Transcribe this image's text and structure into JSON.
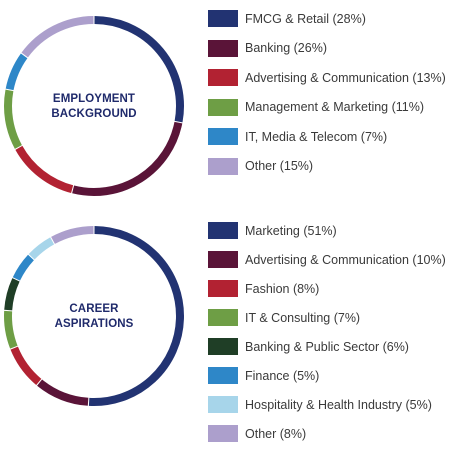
{
  "chart_data": [
    {
      "type": "pie",
      "donut": true,
      "title": "EMPLOYMENT BACKGROUND",
      "title_lines": [
        "EMPLOYMENT",
        "BACKGROUND"
      ],
      "slices": [
        {
          "label": "FMCG & Retail (28%)",
          "value": 28,
          "color": "#223372"
        },
        {
          "label": "Banking (26%)",
          "value": 26,
          "color": "#5a1438"
        },
        {
          "label": "Advertising & Communication (13%)",
          "value": 13,
          "color": "#b22232"
        },
        {
          "label": "Management & Marketing (11%)",
          "value": 11,
          "color": "#6e9e45"
        },
        {
          "label": "IT, Media & Telecom (7%)",
          "value": 7,
          "color": "#2e87c8"
        },
        {
          "label": "Other (15%)",
          "value": 15,
          "color": "#ac9fcc"
        }
      ]
    },
    {
      "type": "pie",
      "donut": true,
      "title": "CAREER ASPIRATIONS",
      "title_lines": [
        "CAREER",
        "ASPIRATIONS"
      ],
      "slices": [
        {
          "label": "Marketing (51%)",
          "value": 51,
          "color": "#223372"
        },
        {
          "label": "Advertising & Communication (10%)",
          "value": 10,
          "color": "#5a1438"
        },
        {
          "label": "Fashion (8%)",
          "value": 8,
          "color": "#b22232"
        },
        {
          "label": "IT & Consulting (7%)",
          "value": 7,
          "color": "#6e9e45"
        },
        {
          "label": "Banking & Public Sector (6%)",
          "value": 6,
          "color": "#1f3e26"
        },
        {
          "label": "Finance (5%)",
          "value": 5,
          "color": "#2e87c8"
        },
        {
          "label": "Hospitality & Health Industry (5%)",
          "value": 5,
          "color": "#a7d5ea"
        },
        {
          "label": "Other (8%)",
          "value": 8,
          "color": "#ac9fcc"
        }
      ]
    }
  ]
}
